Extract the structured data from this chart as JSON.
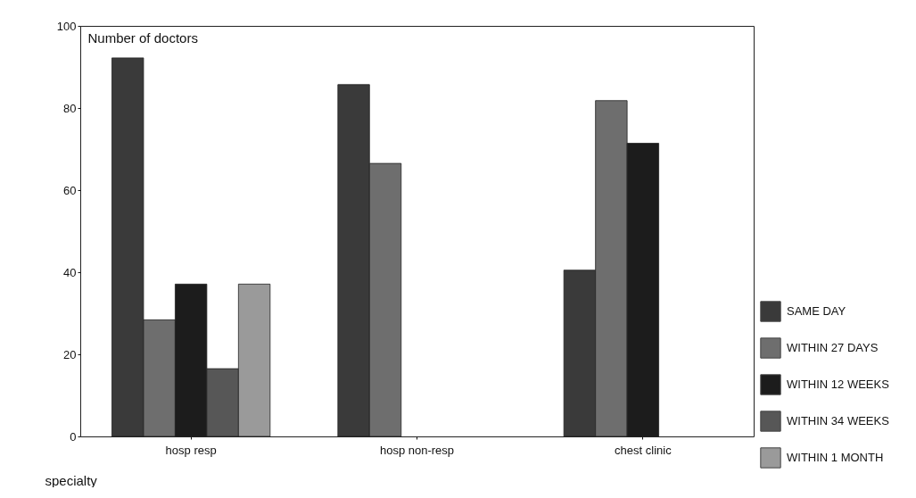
{
  "chart_data": {
    "type": "bar",
    "xlabel": "specialty",
    "ylabel": "Number of doctors",
    "categories": [
      "hosp resp",
      "hosp non-resp",
      "chest clinic"
    ],
    "series": [
      {
        "name": "SAME DAY",
        "color": "#3a3a3a",
        "values": [
          92.2,
          85.7,
          40.5
        ]
      },
      {
        "name": "WITHIN 27 DAYS",
        "color": "#6e6e6e",
        "values": [
          28.4,
          66.5,
          81.8
        ]
      },
      {
        "name": "WITHIN 12 WEEKS",
        "color": "#1c1c1c",
        "values": [
          37.1,
          null,
          71.4
        ]
      },
      {
        "name": "WITHIN 34 WEEKS",
        "color": "#575757",
        "values": [
          16.5,
          null,
          null
        ]
      },
      {
        "name": "WITHIN 1 MONTH",
        "color": "#9a9a9a",
        "values": [
          37.1,
          null,
          null
        ]
      }
    ],
    "ylim": [
      0,
      100
    ],
    "yticks": [
      0,
      20,
      40,
      60,
      80,
      100
    ],
    "grid": false,
    "legend": "bottom right"
  }
}
